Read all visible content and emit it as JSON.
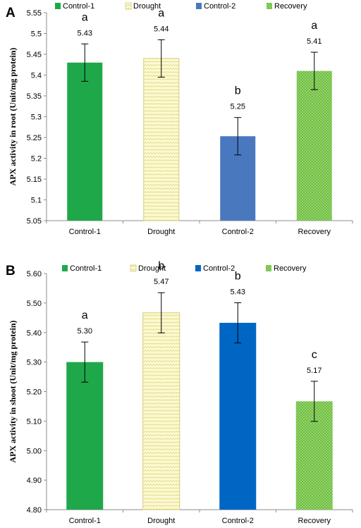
{
  "chart_data": [
    {
      "panel": "A",
      "type": "bar",
      "ylabel": "APX activity in root  (Unit/mg protein)",
      "ylim": [
        5.05,
        5.55
      ],
      "ytick_step": 0.05,
      "ytick_labels": [
        "5.05",
        "5.1",
        "5.15",
        "5.2",
        "5.25",
        "5.3",
        "5.35",
        "5.4",
        "5.45",
        "5.5",
        "5.55"
      ],
      "categories": [
        "Control-1",
        "Drought",
        "Control-2",
        "Recovery"
      ],
      "values": [
        5.43,
        5.44,
        5.253,
        5.41
      ],
      "value_labels": [
        "5.43",
        "5.44",
        "5.25",
        "5.41"
      ],
      "error": [
        0.045,
        0.045,
        0.045,
        0.045
      ],
      "significance": [
        "a",
        "a",
        "b",
        "a"
      ],
      "legend": [
        "Control-1",
        "Drought",
        "Control-2",
        "Recovery"
      ],
      "legend_position": "top",
      "grid": false
    },
    {
      "panel": "B",
      "type": "bar",
      "ylabel": "APX activity  in shoot (Unit/mg protein)",
      "ylim": [
        4.8,
        5.6
      ],
      "ytick_step": 0.1,
      "ytick_labels": [
        "4.80",
        "4.90",
        "5.00",
        "5.10",
        "5.20",
        "5.30",
        "5.40",
        "5.50",
        "5.60"
      ],
      "categories": [
        "Control-1",
        "Drought",
        "Control-2",
        "Recovery"
      ],
      "values": [
        5.3,
        5.467,
        5.433,
        5.167
      ],
      "value_labels": [
        "5.30",
        "5.47",
        "5.43",
        "5.17"
      ],
      "error": [
        0.068,
        0.068,
        0.068,
        0.068
      ],
      "significance": [
        "a",
        "b",
        "b",
        "c"
      ],
      "legend": [
        "Control-1",
        "Drought",
        "Control-2",
        "Recovery"
      ],
      "legend_position": "top",
      "grid": false
    }
  ],
  "colors": {
    "control1": "#1fa84a",
    "drought_fill": "#fdfbd3",
    "drought_stroke": "#d2cd7a",
    "control2_a": "#4a78bf",
    "control2_b": "#0066c4",
    "recovery": "#6cbf3c",
    "recovery_dot": "#cbe8b6"
  }
}
